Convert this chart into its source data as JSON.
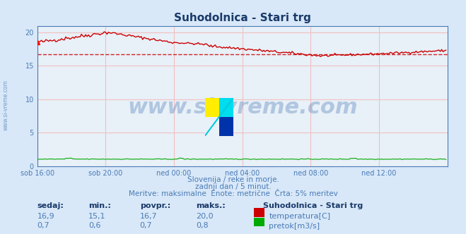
{
  "title": "Suhodolnica - Stari trg",
  "bg_color": "#d8e8f8",
  "plot_bg_color": "#e8f0f8",
  "grid_color": "#f0c0c0",
  "title_color": "#1a3a6a",
  "axis_label_color": "#4a7ab5",
  "text_color": "#4a7ab5",
  "x_tick_labels": [
    "sob 16:00",
    "sob 20:00",
    "ned 00:00",
    "ned 04:00",
    "ned 08:00",
    "ned 12:00"
  ],
  "x_tick_positions": [
    0,
    48,
    96,
    144,
    192,
    240
  ],
  "y_ticks": [
    0,
    5,
    10,
    15,
    20
  ],
  "ylim": [
    0,
    21
  ],
  "xlim": [
    0,
    288
  ],
  "avg_line_y": 16.7,
  "avg_line_color": "#cc0000",
  "temp_color": "#cc0000",
  "flow_color": "#00aa00",
  "watermark_text": "www.si-vreme.com",
  "watermark_color": "#4a7ab5",
  "watermark_alpha": 0.35,
  "sub_text1": "Slovenija / reke in morje.",
  "sub_text2": "zadnji dan / 5 minut.",
  "sub_text3": "Meritve: maksimalne  Enote: metrične  Črta: 5% meritev",
  "label_sedaj": "sedaj:",
  "label_min": "min.:",
  "label_povpr": "povpr.:",
  "label_maks": "maks.:",
  "temp_sedaj": "16,9",
  "temp_min": "15,1",
  "temp_povpr": "16,7",
  "temp_maks": "20,0",
  "flow_sedaj": "0,7",
  "flow_min": "0,6",
  "flow_povpr": "0,7",
  "flow_maks": "0,8",
  "legend_title": "Suhodolnica - Stari trg",
  "legend_temp": "temperatura[C]",
  "legend_flow": "pretok[m3/s]",
  "ylabel_text": "www.si-vreme.com"
}
